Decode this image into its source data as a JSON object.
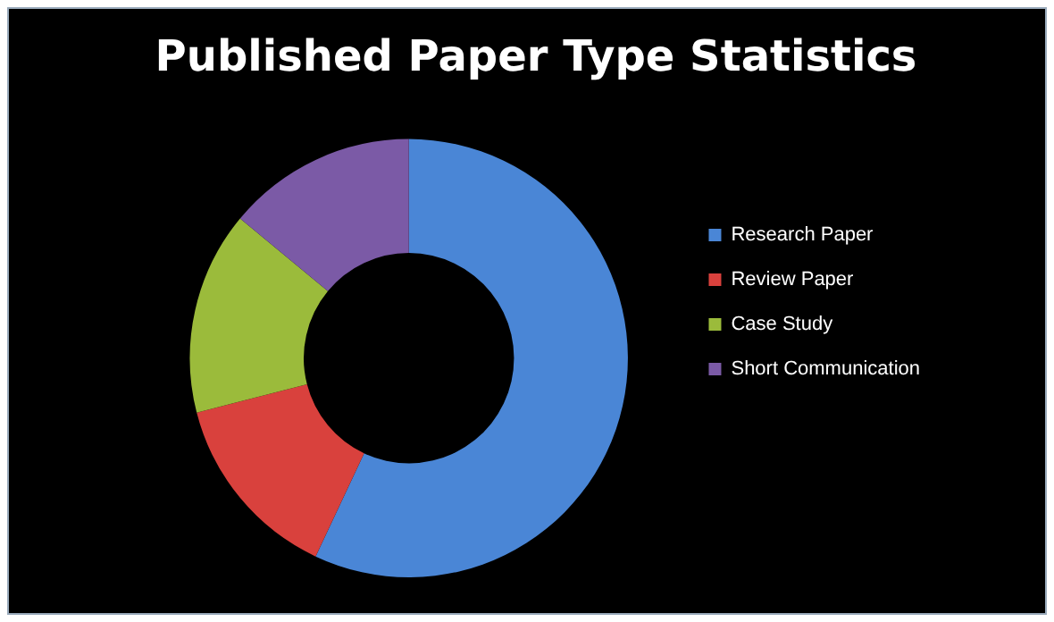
{
  "chart_data": {
    "type": "donut",
    "title": "Published Paper Type Statistics",
    "categories": [
      "Research Paper",
      "Review Paper",
      "Case Study",
      "Short Communication"
    ],
    "values": [
      57,
      14,
      15,
      14
    ],
    "colors": [
      "#4a86d6",
      "#d9413d",
      "#9bbb3b",
      "#7b5aa6"
    ],
    "legend": "right"
  }
}
